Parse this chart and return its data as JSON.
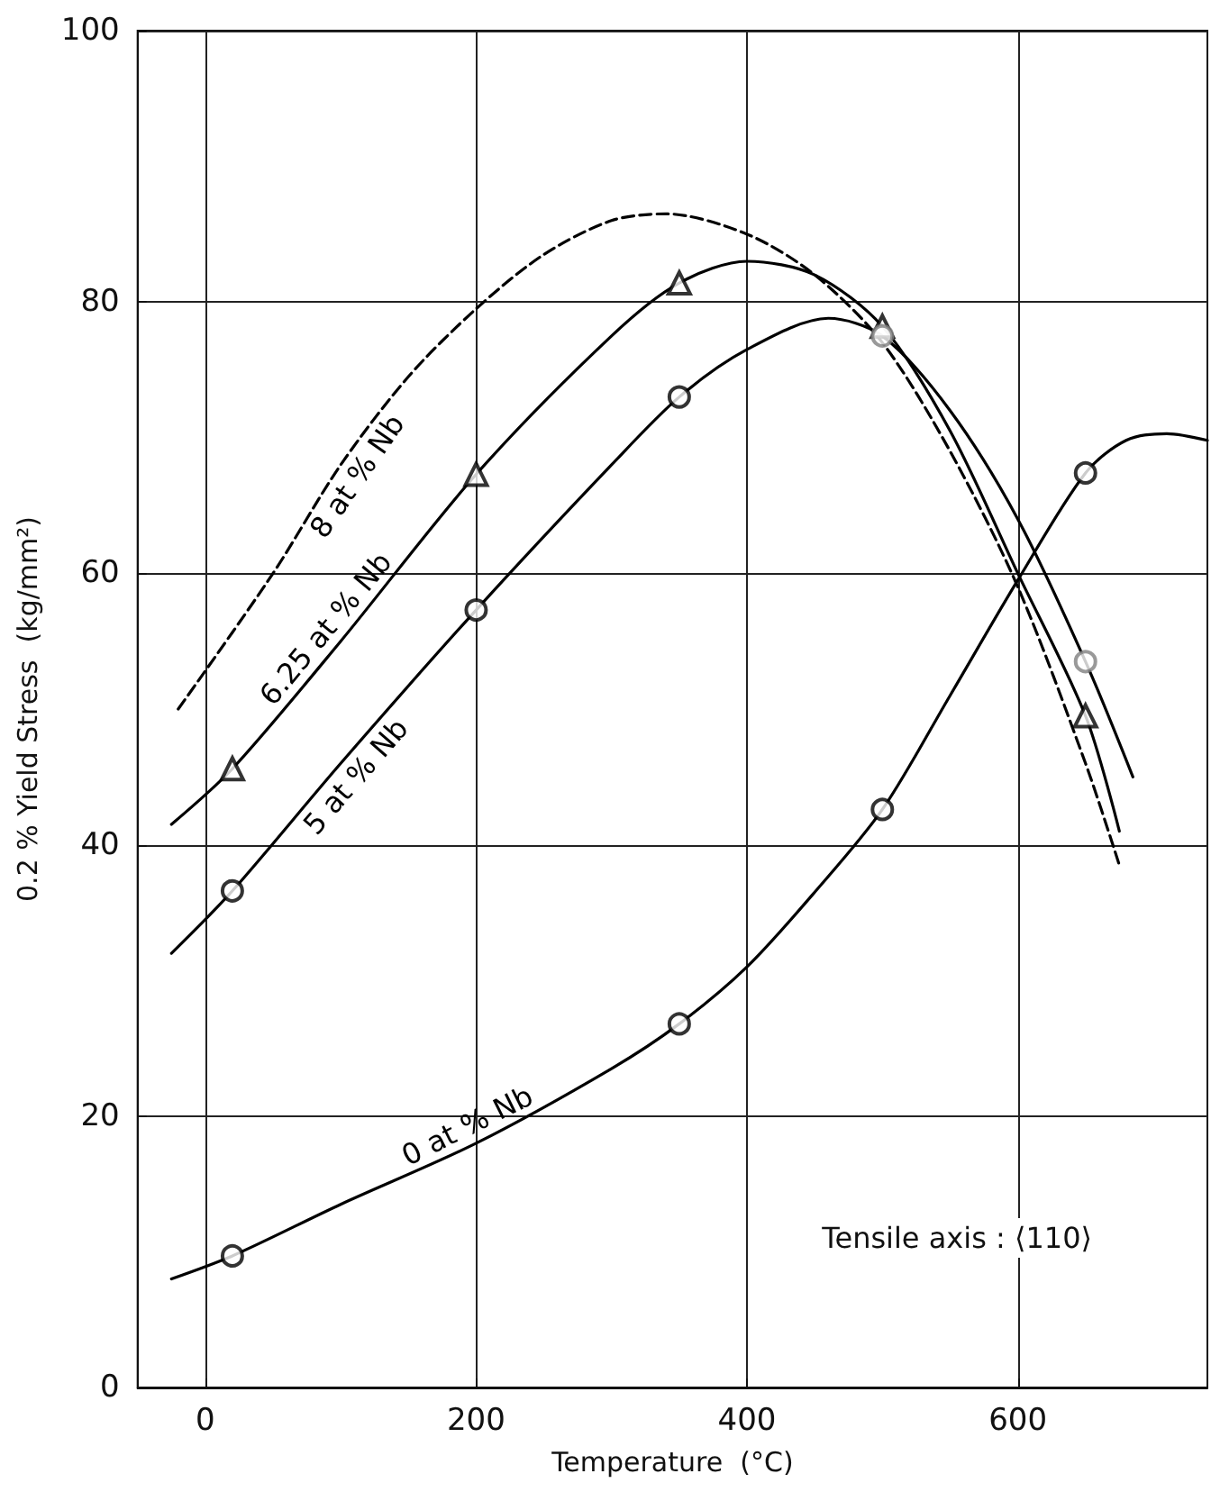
{
  "chart_data": {
    "type": "line",
    "xlabel": "Temperature  (°C)",
    "ylabel": "0.2 % Yield Stress  (kg/mm²)",
    "xlim": [
      -50,
      740
    ],
    "xticks": [
      0,
      200,
      400,
      600
    ],
    "ylim": [
      0,
      100
    ],
    "yticks": [
      0,
      20,
      40,
      60,
      80,
      100
    ],
    "grid": true,
    "legend": false,
    "line_style": "solid",
    "annotations": [
      "Tensile axis : ⟨110⟩"
    ],
    "series": [
      {
        "name": "8 at % Nb",
        "line_style": "dashed",
        "marker": "none",
        "color": "#000000",
        "x": [
          -20,
          50,
          100,
          150,
          200,
          250,
          300,
          340,
          400,
          450,
          500,
          550,
          600,
          650,
          675
        ],
        "values": [
          50,
          60,
          68,
          74.5,
          79.5,
          83.5,
          86,
          86.5,
          85,
          82,
          77,
          69,
          59,
          46,
          38.5
        ]
      },
      {
        "name": "6.25 at % Nb",
        "marker": "none",
        "color": "#000000",
        "x": [
          -25,
          20,
          100,
          200,
          300,
          350,
          400,
          450,
          500,
          550,
          600,
          650,
          675
        ],
        "values": [
          41.5,
          45.6,
          55,
          67.3,
          77.5,
          81.4,
          83,
          82,
          78.2,
          70.5,
          60,
          49.5,
          41
        ]
      },
      {
        "name": "5 at % Nb",
        "marker": "none",
        "color": "#000000",
        "x": [
          -25,
          20,
          100,
          200,
          300,
          350,
          400,
          460,
          500,
          550,
          600,
          650,
          685
        ],
        "values": [
          32,
          36.6,
          46,
          57.3,
          68,
          73,
          76.5,
          78.8,
          77.5,
          72,
          64,
          53.5,
          45
        ]
      },
      {
        "name": "0 at % Nb",
        "marker": "none",
        "color": "#000000",
        "x": [
          -25,
          20,
          100,
          200,
          300,
          350,
          400,
          450,
          500,
          550,
          600,
          650,
          680,
          710,
          740
        ],
        "values": [
          8,
          9.7,
          13.5,
          18,
          23.5,
          26.8,
          31,
          36.5,
          42.6,
          51,
          59.5,
          67.4,
          69.8,
          70.3,
          69.8
        ]
      },
      {
        "type": "scatter",
        "marker": "triangle",
        "color": "#000000",
        "x": [
          20,
          200,
          350,
          500,
          650
        ],
        "values": [
          45.6,
          67.3,
          81.4,
          78.2,
          49.5
        ]
      },
      {
        "type": "scatter",
        "marker": "circle",
        "color": "#000000",
        "x": [
          20,
          200,
          350,
          20,
          350,
          500,
          650
        ],
        "values": [
          36.6,
          57.3,
          73,
          9.7,
          26.8,
          42.6,
          67.4
        ]
      },
      {
        "type": "scatter",
        "marker": "circle",
        "color": "#808080",
        "x": [
          500,
          650
        ],
        "values": [
          77.5,
          53.5
        ]
      }
    ]
  }
}
